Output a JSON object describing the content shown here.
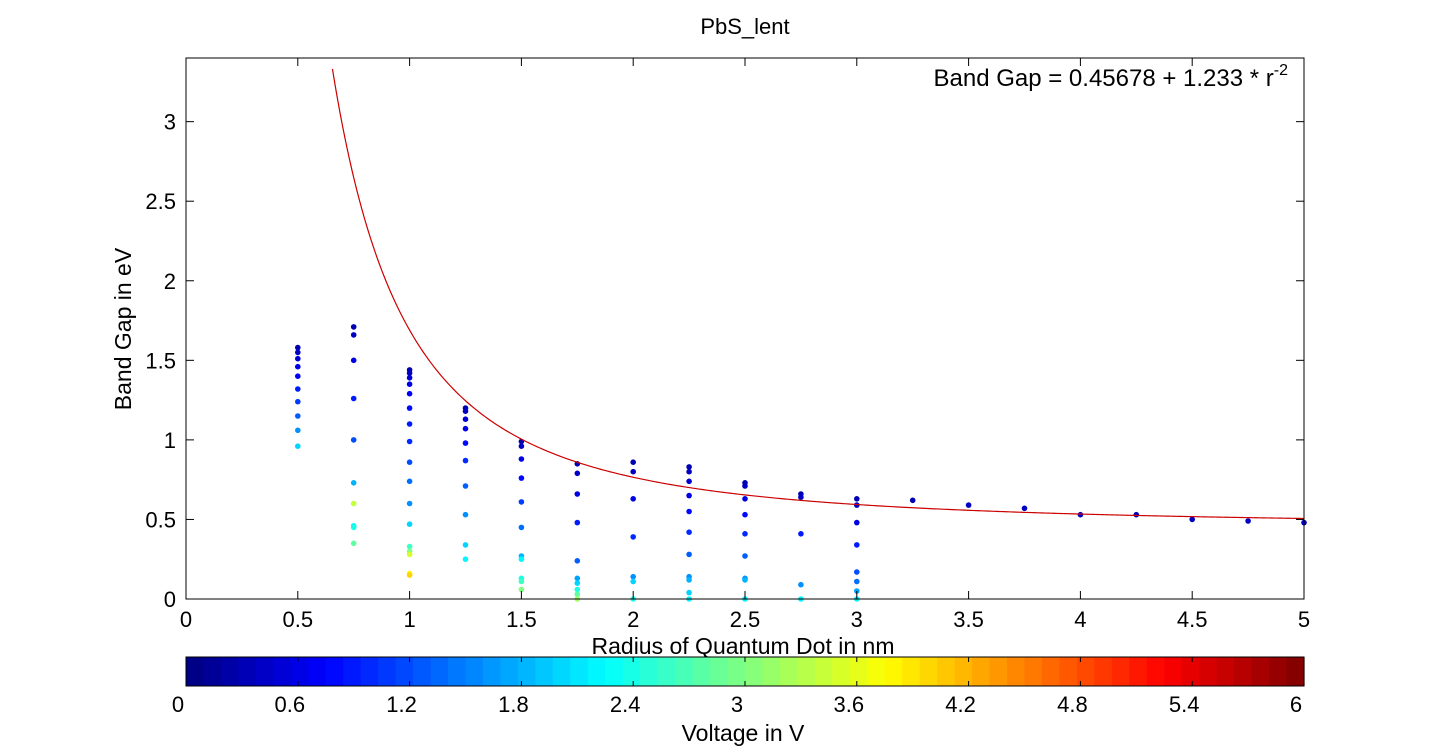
{
  "chart_data": {
    "type": "scatter",
    "title": "PbS_lent",
    "xlabel": "Radius of Quantum Dot in nm",
    "ylabel": "Band Gap in eV",
    "xlim": [
      0,
      5
    ],
    "ylim": [
      0,
      3.4
    ],
    "x_ticks": [
      "0",
      "0.5",
      "1",
      "1.5",
      "2",
      "2.5",
      "3",
      "3.5",
      "4",
      "4.5",
      "5"
    ],
    "y_ticks": [
      "0",
      "0.5",
      "1",
      "1.5",
      "2",
      "2.5",
      "3"
    ],
    "grid": false,
    "annotation": {
      "text": "Band Gap = 0.45678 + 1.233 * r",
      "superscript": "-2",
      "position": "top-right"
    },
    "fit_curve": {
      "name": "",
      "color": "#cc0000",
      "a": 0.45678,
      "b": 1.233,
      "power": -2,
      "x_range": [
        0.6,
        5
      ]
    },
    "points": [
      {
        "x": 0.5,
        "y": 1.58,
        "v": 0.3
      },
      {
        "x": 0.5,
        "y": 1.55,
        "v": 0.4
      },
      {
        "x": 0.5,
        "y": 1.51,
        "v": 0.5
      },
      {
        "x": 0.5,
        "y": 1.46,
        "v": 0.6
      },
      {
        "x": 0.5,
        "y": 1.4,
        "v": 0.7
      },
      {
        "x": 0.5,
        "y": 1.32,
        "v": 0.9
      },
      {
        "x": 0.5,
        "y": 1.24,
        "v": 1.1
      },
      {
        "x": 0.5,
        "y": 1.15,
        "v": 1.3
      },
      {
        "x": 0.5,
        "y": 1.06,
        "v": 1.6
      },
      {
        "x": 0.5,
        "y": 0.96,
        "v": 2.0
      },
      {
        "x": 0.75,
        "y": 1.71,
        "v": 0.3
      },
      {
        "x": 0.75,
        "y": 1.66,
        "v": 0.4
      },
      {
        "x": 0.75,
        "y": 1.5,
        "v": 0.6
      },
      {
        "x": 0.75,
        "y": 1.26,
        "v": 0.9
      },
      {
        "x": 0.75,
        "y": 1.0,
        "v": 1.2
      },
      {
        "x": 0.75,
        "y": 0.73,
        "v": 1.8
      },
      {
        "x": 0.75,
        "y": 0.6,
        "v": 3.4
      },
      {
        "x": 0.75,
        "y": 0.46,
        "v": 2.2
      },
      {
        "x": 0.75,
        "y": 0.45,
        "v": 2.4
      },
      {
        "x": 0.75,
        "y": 0.35,
        "v": 2.8
      },
      {
        "x": 1,
        "y": 1.44,
        "v": 0.3
      },
      {
        "x": 1,
        "y": 1.42,
        "v": 0.4
      },
      {
        "x": 1,
        "y": 1.39,
        "v": 0.5
      },
      {
        "x": 1,
        "y": 1.35,
        "v": 0.6
      },
      {
        "x": 1,
        "y": 1.29,
        "v": 0.7
      },
      {
        "x": 1,
        "y": 1.2,
        "v": 0.8
      },
      {
        "x": 1,
        "y": 1.1,
        "v": 0.9
      },
      {
        "x": 1,
        "y": 0.99,
        "v": 1.0
      },
      {
        "x": 1,
        "y": 0.86,
        "v": 1.2
      },
      {
        "x": 1,
        "y": 0.74,
        "v": 1.4
      },
      {
        "x": 1,
        "y": 0.6,
        "v": 1.6
      },
      {
        "x": 1,
        "y": 0.47,
        "v": 2.0
      },
      {
        "x": 1,
        "y": 0.33,
        "v": 2.6
      },
      {
        "x": 1,
        "y": 0.3,
        "v": 3.0
      },
      {
        "x": 1,
        "y": 0.28,
        "v": 3.5
      },
      {
        "x": 1,
        "y": 0.16,
        "v": 3.8
      },
      {
        "x": 1,
        "y": 0.15,
        "v": 4.0
      },
      {
        "x": 1.25,
        "y": 1.2,
        "v": 0.3
      },
      {
        "x": 1.25,
        "y": 1.18,
        "v": 0.4
      },
      {
        "x": 1.25,
        "y": 1.13,
        "v": 0.5
      },
      {
        "x": 1.25,
        "y": 1.07,
        "v": 0.6
      },
      {
        "x": 1.25,
        "y": 0.98,
        "v": 0.8
      },
      {
        "x": 1.25,
        "y": 0.87,
        "v": 1.0
      },
      {
        "x": 1.25,
        "y": 0.71,
        "v": 1.3
      },
      {
        "x": 1.25,
        "y": 0.53,
        "v": 1.6
      },
      {
        "x": 1.25,
        "y": 0.34,
        "v": 2.0
      },
      {
        "x": 1.25,
        "y": 0.25,
        "v": 2.2
      },
      {
        "x": 1.5,
        "y": 0.99,
        "v": 0.3
      },
      {
        "x": 1.5,
        "y": 0.96,
        "v": 0.4
      },
      {
        "x": 1.5,
        "y": 0.88,
        "v": 0.6
      },
      {
        "x": 1.5,
        "y": 0.76,
        "v": 0.8
      },
      {
        "x": 1.5,
        "y": 0.61,
        "v": 1.1
      },
      {
        "x": 1.5,
        "y": 0.45,
        "v": 1.4
      },
      {
        "x": 1.5,
        "y": 0.27,
        "v": 1.8
      },
      {
        "x": 1.5,
        "y": 0.25,
        "v": 2.2
      },
      {
        "x": 1.5,
        "y": 0.13,
        "v": 2.4
      },
      {
        "x": 1.5,
        "y": 0.11,
        "v": 2.6
      },
      {
        "x": 1.5,
        "y": 0.06,
        "v": 3.0
      },
      {
        "x": 1.75,
        "y": 0.85,
        "v": 0.3
      },
      {
        "x": 1.75,
        "y": 0.79,
        "v": 0.4
      },
      {
        "x": 1.75,
        "y": 0.66,
        "v": 0.6
      },
      {
        "x": 1.75,
        "y": 0.48,
        "v": 0.9
      },
      {
        "x": 1.75,
        "y": 0.24,
        "v": 1.3
      },
      {
        "x": 1.75,
        "y": 0.13,
        "v": 1.7
      },
      {
        "x": 1.75,
        "y": 0.1,
        "v": 2.0
      },
      {
        "x": 1.75,
        "y": 0.06,
        "v": 2.4
      },
      {
        "x": 1.75,
        "y": 0.03,
        "v": 2.8
      },
      {
        "x": 1.75,
        "y": 0.0,
        "v": 3.2
      },
      {
        "x": 2,
        "y": 0.86,
        "v": 0.3
      },
      {
        "x": 2,
        "y": 0.8,
        "v": 0.4
      },
      {
        "x": 2,
        "y": 0.63,
        "v": 0.6
      },
      {
        "x": 2,
        "y": 0.39,
        "v": 1.0
      },
      {
        "x": 2,
        "y": 0.14,
        "v": 1.6
      },
      {
        "x": 2,
        "y": 0.11,
        "v": 2.0
      },
      {
        "x": 2,
        "y": 0.0,
        "v": 2.4
      },
      {
        "x": 2.25,
        "y": 0.83,
        "v": 0.3
      },
      {
        "x": 2.25,
        "y": 0.8,
        "v": 0.4
      },
      {
        "x": 2.25,
        "y": 0.74,
        "v": 0.5
      },
      {
        "x": 2.25,
        "y": 0.65,
        "v": 0.6
      },
      {
        "x": 2.25,
        "y": 0.55,
        "v": 0.8
      },
      {
        "x": 2.25,
        "y": 0.42,
        "v": 1.0
      },
      {
        "x": 2.25,
        "y": 0.28,
        "v": 1.3
      },
      {
        "x": 2.25,
        "y": 0.14,
        "v": 1.6
      },
      {
        "x": 2.25,
        "y": 0.12,
        "v": 1.8
      },
      {
        "x": 2.25,
        "y": 0.04,
        "v": 2.0
      },
      {
        "x": 2.25,
        "y": 0.0,
        "v": 2.2
      },
      {
        "x": 2.5,
        "y": 0.73,
        "v": 0.3
      },
      {
        "x": 2.5,
        "y": 0.71,
        "v": 0.4
      },
      {
        "x": 2.5,
        "y": 0.63,
        "v": 0.6
      },
      {
        "x": 2.5,
        "y": 0.53,
        "v": 0.8
      },
      {
        "x": 2.5,
        "y": 0.41,
        "v": 1.0
      },
      {
        "x": 2.5,
        "y": 0.27,
        "v": 1.3
      },
      {
        "x": 2.5,
        "y": 0.13,
        "v": 1.6
      },
      {
        "x": 2.5,
        "y": 0.12,
        "v": 1.8
      },
      {
        "x": 2.5,
        "y": 0.0,
        "v": 2.2
      },
      {
        "x": 2.75,
        "y": 0.66,
        "v": 0.3
      },
      {
        "x": 2.75,
        "y": 0.64,
        "v": 0.4
      },
      {
        "x": 2.75,
        "y": 0.41,
        "v": 0.9
      },
      {
        "x": 2.75,
        "y": 0.09,
        "v": 1.6
      },
      {
        "x": 2.75,
        "y": 0.0,
        "v": 2.2
      },
      {
        "x": 3,
        "y": 0.63,
        "v": 0.3
      },
      {
        "x": 3,
        "y": 0.59,
        "v": 0.4
      },
      {
        "x": 3,
        "y": 0.48,
        "v": 0.6
      },
      {
        "x": 3,
        "y": 0.34,
        "v": 0.9
      },
      {
        "x": 3,
        "y": 0.17,
        "v": 1.2
      },
      {
        "x": 3,
        "y": 0.11,
        "v": 1.4
      },
      {
        "x": 3,
        "y": 0.05,
        "v": 1.7
      },
      {
        "x": 3,
        "y": 0.0,
        "v": 2.2
      },
      {
        "x": 3.25,
        "y": 0.62,
        "v": 0.3
      },
      {
        "x": 3.5,
        "y": 0.59,
        "v": 0.4
      },
      {
        "x": 3.75,
        "y": 0.57,
        "v": 0.4
      },
      {
        "x": 4,
        "y": 0.53,
        "v": 0.4
      },
      {
        "x": 4.25,
        "y": 0.53,
        "v": 0.3
      },
      {
        "x": 4.5,
        "y": 0.5,
        "v": 0.4
      },
      {
        "x": 4.75,
        "y": 0.49,
        "v": 0.4
      },
      {
        "x": 5,
        "y": 0.48,
        "v": 0.4
      }
    ],
    "colorbar": {
      "label": "Voltage in V",
      "colormap": "jet",
      "range": [
        0,
        6
      ],
      "ticks": [
        "0",
        "0.6",
        "1.2",
        "1.8",
        "2.4",
        "3",
        "3.6",
        "4.2",
        "4.8",
        "5.4",
        "6"
      ],
      "position": "bottom"
    }
  }
}
